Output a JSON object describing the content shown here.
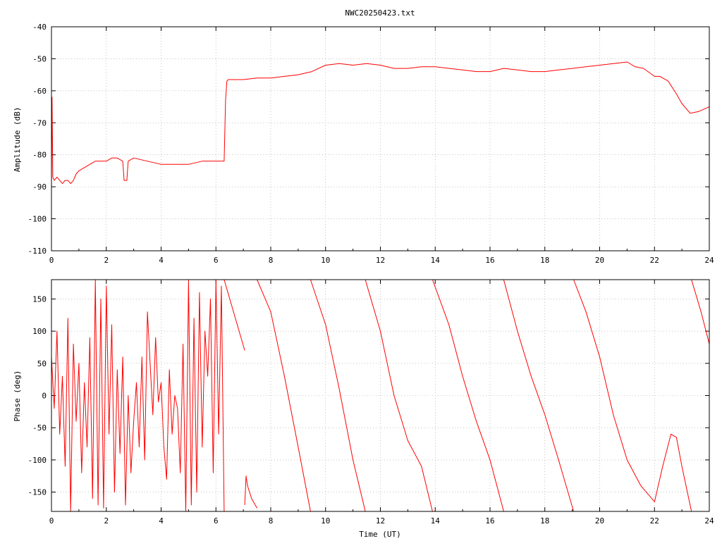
{
  "chart_data": [
    {
      "type": "line",
      "title": "NWC20250423.txt",
      "xlabel": "",
      "ylabel": "Amplitude (dB)",
      "xlim": [
        0,
        24
      ],
      "ylim": [
        -110,
        -40
      ],
      "xticks": [
        "0",
        "2",
        "4",
        "6",
        "8",
        "10",
        "12",
        "14",
        "16",
        "18",
        "20",
        "22",
        "24"
      ],
      "yticks": [
        "-40",
        "-50",
        "-60",
        "-70",
        "-80",
        "-90",
        "-100",
        "-110"
      ],
      "grid": true,
      "color": "#ff0000",
      "series": [
        {
          "x": [
            0.0,
            0.02,
            0.05,
            0.1,
            0.2,
            0.3,
            0.4,
            0.5,
            0.6,
            0.7,
            0.8,
            0.9,
            1.0,
            1.2,
            1.4,
            1.6,
            1.8,
            2.0,
            2.2,
            2.4,
            2.6,
            2.65,
            2.75,
            2.8,
            3.0,
            3.5,
            4.0,
            4.5,
            5.0,
            5.5,
            6.0,
            6.2,
            6.3,
            6.35,
            6.4,
            6.45,
            6.5,
            7.0,
            7.5,
            8.0,
            8.5,
            9.0,
            9.5,
            10.0,
            10.5,
            11.0,
            11.5,
            12.0,
            12.5,
            13.0,
            13.5,
            14.0,
            14.5,
            15.0,
            15.5,
            16.0,
            16.5,
            17.0,
            17.5,
            18.0,
            18.5,
            19.0,
            19.5,
            20.0,
            20.5,
            21.0,
            21.3,
            21.6,
            22.0,
            22.2,
            22.5,
            22.8,
            23.0,
            23.3,
            23.6,
            24.0
          ],
          "y": [
            -86,
            -62,
            -87,
            -88,
            -87,
            -88,
            -89,
            -88,
            -88,
            -89,
            -88,
            -86,
            -85,
            -84,
            -83,
            -82,
            -82,
            -82,
            -81,
            -81,
            -82,
            -88,
            -88,
            -82,
            -81,
            -82,
            -83,
            -83,
            -83,
            -82,
            -82,
            -82,
            -82,
            -63,
            -57,
            -56.5,
            -56.5,
            -56.5,
            -56,
            -56,
            -55.5,
            -55,
            -54,
            -52,
            -51.5,
            -52,
            -51.5,
            -52,
            -53,
            -53,
            -52.5,
            -52.5,
            -53,
            -53.5,
            -54,
            -54,
            -53,
            -53.5,
            -54,
            -54,
            -53.5,
            -53,
            -52.5,
            -52,
            -51.5,
            -51,
            -52.5,
            -53,
            -55.5,
            -55.5,
            -57,
            -61,
            -64,
            -67,
            -66.5,
            -65
          ]
        }
      ]
    },
    {
      "type": "line",
      "title": "",
      "xlabel": "Time (UT)",
      "ylabel": "Phase (deg)",
      "xlim": [
        0,
        24
      ],
      "ylim": [
        -180,
        180
      ],
      "xticks": [
        "0",
        "2",
        "4",
        "6",
        "8",
        "10",
        "12",
        "14",
        "16",
        "18",
        "20",
        "22",
        "24"
      ],
      "yticks": [
        "150",
        "100",
        "50",
        "0",
        "-50",
        "-100",
        "-150"
      ],
      "grid": true,
      "color": "#ff0000",
      "series": [
        {
          "x": [
            0.0,
            0.1,
            0.2,
            0.3,
            0.4,
            0.5,
            0.6,
            0.7,
            0.8,
            0.9,
            1.0,
            1.1,
            1.2,
            1.3,
            1.4,
            1.5,
            1.6,
            1.7,
            1.8,
            1.9,
            2.0,
            2.1,
            2.2,
            2.3,
            2.4,
            2.5,
            2.6,
            2.7,
            2.8,
            2.9,
            3.0,
            3.1,
            3.2,
            3.3,
            3.4,
            3.5,
            3.6,
            3.7,
            3.8,
            3.9,
            4.0,
            4.1,
            4.2,
            4.3,
            4.4,
            4.5,
            4.6,
            4.7,
            4.8,
            4.9,
            5.0,
            5.1,
            5.2,
            5.3,
            5.4,
            5.5,
            5.6,
            5.7,
            5.8,
            5.9,
            6.0,
            6.1,
            6.2,
            6.3
          ],
          "y": [
            60,
            -20,
            100,
            -60,
            30,
            -110,
            120,
            -180,
            80,
            -40,
            50,
            -120,
            20,
            -80,
            90,
            -160,
            180,
            -170,
            150,
            -175,
            170,
            -60,
            110,
            -150,
            40,
            -90,
            60,
            -170,
            0,
            -120,
            -40,
            20,
            -80,
            60,
            -100,
            130,
            50,
            -30,
            90,
            -10,
            20,
            -80,
            -130,
            40,
            -60,
            0,
            -20,
            -120,
            80,
            -180,
            180,
            -170,
            120,
            -150,
            160,
            -80,
            100,
            30,
            150,
            -120,
            180,
            -60,
            170,
            -180
          ]
        },
        {
          "x": [
            6.3,
            7.05
          ],
          "y": [
            180,
            70
          ]
        },
        {
          "x": [
            7.05,
            7.1,
            7.15,
            7.3,
            7.5
          ],
          "y": [
            -170,
            -125,
            -140,
            -160,
            -175
          ]
        },
        {
          "x": [
            7.5,
            8.0,
            8.5,
            9.0,
            9.45
          ],
          "y": [
            180,
            130,
            30,
            -80,
            -180
          ]
        },
        {
          "x": [
            9.45,
            10.0,
            10.5,
            11.0,
            11.45
          ],
          "y": [
            180,
            110,
            10,
            -100,
            -180
          ]
        },
        {
          "x": [
            11.45,
            12.0,
            12.5,
            13.0,
            13.5,
            13.9
          ],
          "y": [
            180,
            100,
            0,
            -70,
            -110,
            -180
          ]
        },
        {
          "x": [
            13.9,
            14.5,
            15.0,
            15.5,
            16.0,
            16.5
          ],
          "y": [
            180,
            110,
            30,
            -40,
            -100,
            -180
          ]
        },
        {
          "x": [
            16.5,
            17.0,
            17.5,
            18.0,
            18.5,
            19.05
          ],
          "y": [
            180,
            100,
            30,
            -30,
            -100,
            -180
          ]
        },
        {
          "x": [
            19.05,
            19.5,
            20.0,
            20.5,
            21.0,
            21.5,
            22.0,
            22.3,
            22.6,
            22.8,
            23.0,
            23.35
          ],
          "y": [
            180,
            130,
            60,
            -30,
            -100,
            -140,
            -165,
            -110,
            -60,
            -65,
            -110,
            -180
          ]
        },
        {
          "x": [
            23.35,
            23.7,
            24.0
          ],
          "y": [
            180,
            130,
            80
          ]
        }
      ]
    }
  ]
}
